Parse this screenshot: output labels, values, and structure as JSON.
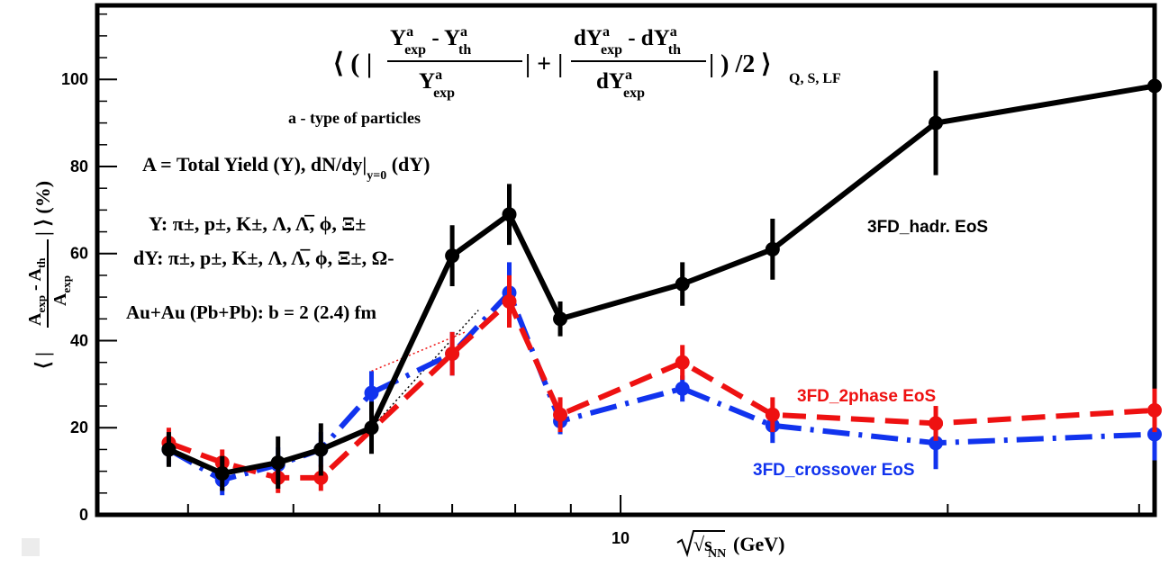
{
  "chart_data": {
    "type": "line",
    "x_axis": {
      "label_main": "√s",
      "label_sub": "NN",
      "label_unit": "(GeV)",
      "scale": "log",
      "ticks": [
        10
      ],
      "range": [
        3.3,
        31
      ]
    },
    "y_axis": {
      "label_pre": "⟨ |",
      "label_num_main": "A",
      "label_num_sub": "exp",
      "label_num_mid": " - A",
      "label_num_sub2": "th",
      "label_den_main": "A",
      "label_den_sub": "exp",
      "label_post": "| ⟩ (%)",
      "ticks": [
        0,
        20,
        40,
        60,
        80,
        100
      ],
      "range": [
        0,
        117
      ]
    },
    "formula": {
      "open": "⟨ ( |",
      "f1_num_a": "Y",
      "f1_num_a_sup": "a",
      "f1_num_a_sub": "exp",
      "f1_num_op": " - Y",
      "f1_num_b_sup": "a",
      "f1_num_b_sub": "th",
      "f1_den": "Y",
      "f1_den_sup": "a",
      "f1_den_sub": "exp",
      "mid": "| + |",
      "f2_num_a": "dY",
      "f2_num_a_sup": "a",
      "f2_num_a_sub": "exp",
      "f2_num_op": " - dY",
      "f2_num_b_sup": "a",
      "f2_num_b_sub": "th",
      "f2_den": "dY",
      "f2_den_sup": "a",
      "f2_den_sub": "exp",
      "close": "| ) /2 ⟩",
      "subscript": "Q, S, LF"
    },
    "annotations": {
      "types": "a - type of particles",
      "yield_def_pre": "A = Total Yield (Y), dN/dy|",
      "yield_def_sub": "y=0",
      "yield_def_post": " (dY)",
      "y_list": "Y: π±, p±, K±, Λ, Λ̅, ϕ, Ξ±",
      "dy_list": "dY: π±, p±, K±, Λ, Λ̅, ϕ, Ξ±, Ω-",
      "collision": "Au+Au (Pb+Pb): b = 2 (2.4) fm"
    },
    "series": [
      {
        "name": "3FD_hadr. EoS",
        "color": "#000000",
        "style": "solid",
        "x": [
          3.84,
          4.3,
          4.84,
          5.3,
          5.9,
          7.0,
          7.9,
          8.8,
          11.4,
          13.8,
          19.5,
          31.0
        ],
        "y": [
          15,
          9.5,
          12,
          15,
          20,
          59.5,
          69,
          45,
          53,
          61,
          90,
          98.5
        ],
        "err": [
          4,
          4,
          6,
          6,
          6,
          7,
          7,
          4,
          5,
          7,
          12,
          11
        ]
      },
      {
        "name": "3FD_2phase EoS",
        "color": "#ee1111",
        "style": "dash",
        "x": [
          3.84,
          4.3,
          4.84,
          5.3,
          7.0,
          7.9,
          8.8,
          11.4,
          13.8,
          19.5,
          31.0
        ],
        "y": [
          16.5,
          12,
          8.5,
          8.5,
          37,
          49,
          23,
          35,
          23,
          21,
          24
        ],
        "err": [
          3.5,
          3,
          3.5,
          3,
          5,
          6,
          4,
          4,
          4,
          4,
          5
        ]
      },
      {
        "name": "3FD_crossover EoS",
        "color": "#1133ee",
        "style": "dashdot",
        "x": [
          3.84,
          4.3,
          4.84,
          5.3,
          5.9,
          7.0,
          7.9,
          8.8,
          11.4,
          13.8,
          19.5,
          31.0
        ],
        "y": [
          15,
          8,
          11.5,
          15,
          28,
          37,
          51,
          21.5,
          29,
          20.5,
          16.5,
          18.5
        ],
        "err": [
          3.5,
          3.5,
          4,
          4,
          5,
          5,
          7,
          3,
          3,
          4,
          6,
          6
        ]
      }
    ],
    "grid": false,
    "legend": "inline labels"
  }
}
